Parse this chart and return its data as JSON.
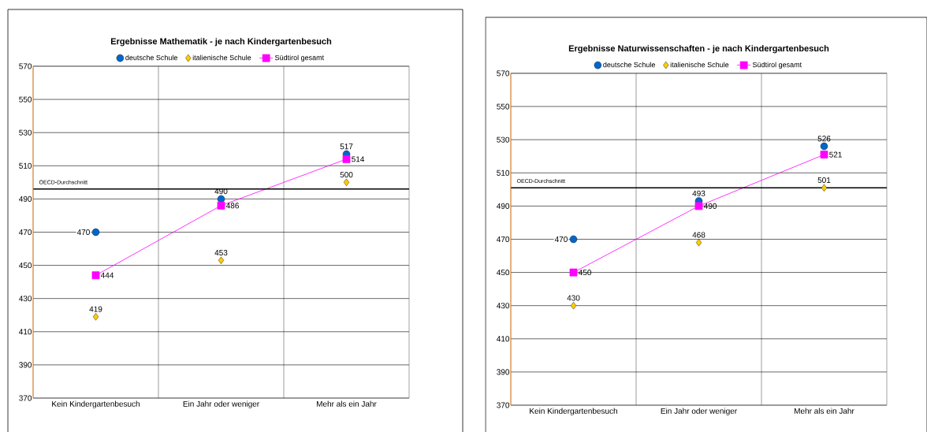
{
  "chart_data": [
    {
      "type": "scatter",
      "title": "Ergebnisse Mathematik - je nach Kindergartenbesuch",
      "categories": [
        "Kein Kindergartenbesuch",
        "Ein Jahr oder weniger",
        "Mehr als ein Jahr"
      ],
      "series": [
        {
          "name": "deutsche Schule",
          "marker": "circle",
          "color": "#0066cc",
          "values": [
            470,
            490,
            517
          ]
        },
        {
          "name": "italienische Schule",
          "marker": "diamond",
          "color": "#ffcc00",
          "values": [
            419,
            453,
            500
          ]
        },
        {
          "name": "Südtirol gesamt",
          "type": "line",
          "marker": "square",
          "color": "#ff00ff",
          "values": [
            444,
            486,
            514
          ]
        }
      ],
      "ylim": [
        370,
        570
      ],
      "yticks": [
        370,
        390,
        410,
        430,
        450,
        470,
        490,
        510,
        530,
        550,
        570
      ],
      "ref_lines": [
        {
          "axis": "y",
          "value": 496,
          "label": "OECD-Durchschnitt"
        }
      ],
      "grid": true,
      "legend": "top",
      "data_labels": true
    },
    {
      "type": "scatter",
      "title": "Ergebnisse Naturwissenschaften - je nach Kindergartenbesuch",
      "categories": [
        "Kein Kindergartenbesuch",
        "Ein Jahr oder weniger",
        "Mehr als ein Jahr"
      ],
      "series": [
        {
          "name": "deutsche Schule",
          "marker": "circle",
          "color": "#0066cc",
          "values": [
            470,
            493,
            526
          ]
        },
        {
          "name": "italienische Schule",
          "marker": "diamond",
          "color": "#ffcc00",
          "values": [
            430,
            468,
            501
          ]
        },
        {
          "name": "Südtirol gesamt",
          "type": "line",
          "marker": "square",
          "color": "#ff00ff",
          "values": [
            450,
            490,
            521
          ]
        }
      ],
      "ylim": [
        370,
        570
      ],
      "yticks": [
        370,
        390,
        410,
        430,
        450,
        470,
        490,
        510,
        530,
        550,
        570
      ],
      "ref_lines": [
        {
          "axis": "y",
          "value": 501,
          "label": "OECD-Durchschnitt"
        }
      ],
      "grid": true,
      "legend": "top",
      "data_labels": true
    }
  ]
}
